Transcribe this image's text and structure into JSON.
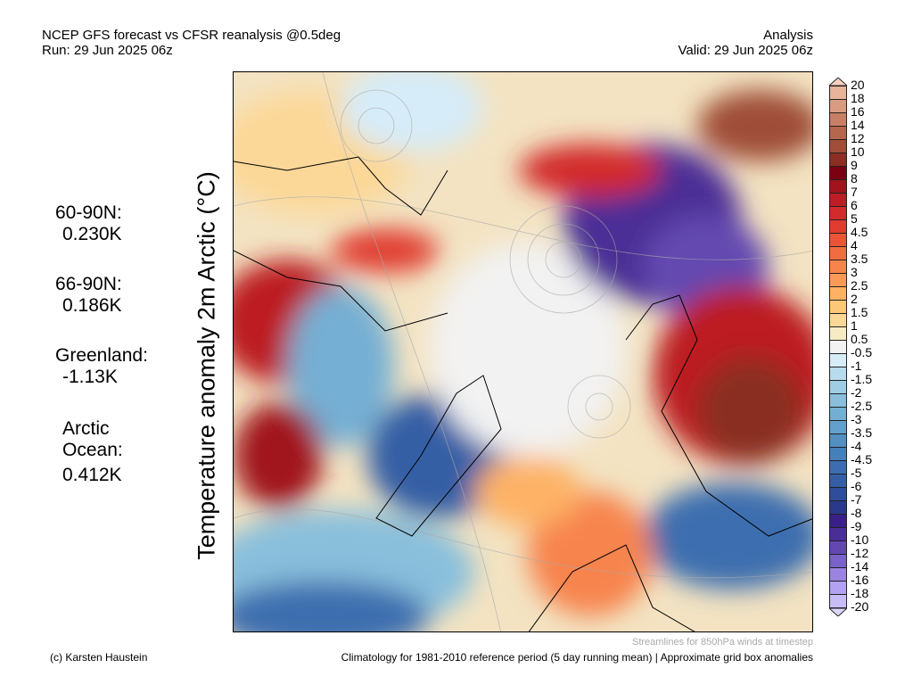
{
  "header": {
    "title_line1": "NCEP GFS forecast vs CFSR reanalysis @0.5deg",
    "title_line2": "Run: 29 Jun 2025 06z",
    "right_line1": "Analysis",
    "right_line2": "Valid: 29 Jun 2025 06z"
  },
  "ylabel": "Temperature anomaly 2m Arctic (°C)",
  "stats": [
    {
      "label": "60-90N:",
      "value": "0.230K"
    },
    {
      "label": "66-90N:",
      "value": "0.186K"
    },
    {
      "label": "Greenland:",
      "value": "-1.13K"
    },
    {
      "label": "Arctic Ocean:",
      "value": "0.412K"
    }
  ],
  "colorbar": {
    "labels": [
      "20",
      "18",
      "16",
      "14",
      "12",
      "10",
      "9",
      "8",
      "7",
      "6",
      "5",
      "4.5",
      "4",
      "3.5",
      "3",
      "2.5",
      "2",
      "1.5",
      "1",
      "0.5",
      "-0.5",
      "-1",
      "-1.5",
      "-2",
      "-2.5",
      "-3",
      "-3.5",
      "-4",
      "-4.5",
      "-5",
      "-6",
      "-7",
      "-8",
      "-9",
      "-10",
      "-12",
      "-14",
      "-16",
      "-18",
      "-20"
    ],
    "top_color": "#f9d0bf",
    "bottom_color": "#dcd6fb",
    "colors": [
      "#e8b49a",
      "#d99c80",
      "#c88064",
      "#b3674c",
      "#9f4e37",
      "#8a2f22",
      "#7a0012",
      "#a1141c",
      "#bc1e24",
      "#d22b2b",
      "#e03c30",
      "#eb5438",
      "#f26c42",
      "#f7844d",
      "#fa9a58",
      "#fdb266",
      "#fdc779",
      "#fbd898",
      "#f7ebc3",
      "#f2f2f2",
      "#d6ecf8",
      "#b8dcee",
      "#9fcde4",
      "#89bfdb",
      "#74afd3",
      "#63a0cb",
      "#5290c2",
      "#4580b9",
      "#3c6eaf",
      "#355fa5",
      "#2f4d98",
      "#2b3a88",
      "#3a2086",
      "#4b2d96",
      "#6448b0",
      "#7a62c6",
      "#9b83df",
      "#b2a2ef",
      "#c8bcf6"
    ]
  },
  "footer": {
    "streamlines": "Streamlines for 850hPa winds at timestep",
    "climatology": "Climatology for 1981-2010 reference period (5 day running mean) | Approximate grid box anomalies",
    "copyright": "(c) Karsten Haustein"
  }
}
